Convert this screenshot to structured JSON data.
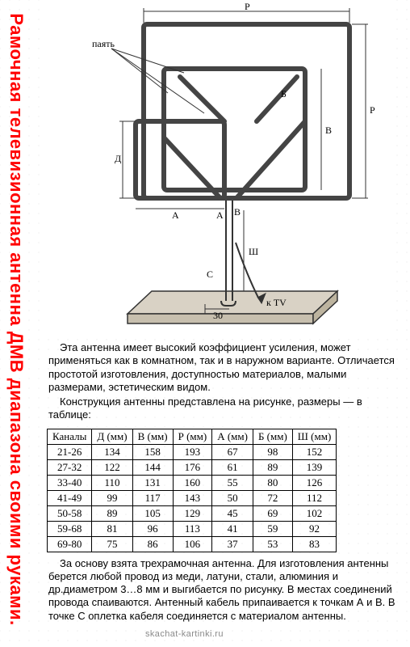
{
  "side_title": "Рамочная телевизионная антенна ДМВ диапазона своими руками.",
  "accent_color": "#ff0000",
  "para1": "Эта антенна имеет высокий коэффициент усиления, может применяться как в комнатном, так и в наружном варианте. Отличается простотой изготовления, доступностью материалов, малыми размерами, эстетическим видом.",
  "para2": "Конструкция антенны представлена на рисунке, размеры — в таблице:",
  "para3": "За основу взята трехрамочная антенна. Для изготовления антенны берется любой провод из меди, латуни, стали, алюминия и др.диаметром 3…8 мм и выгибается по рисунку. В местах соединений провода спаиваются. Антенный кабель припаивается к точкам А и В. В точке С оплетка кабеля соединяется с материалом антенны.",
  "watermark": "skachat-kartinki.ru",
  "diagram": {
    "labels": {
      "payat": "паять",
      "tv": "к TV",
      "dim30": "30"
    },
    "letters": [
      "Р",
      "Д",
      "В",
      "Б",
      "А",
      "А",
      "В",
      "С",
      "Ш"
    ],
    "stroke": "#444444",
    "base_fill": "#d9d2c5"
  },
  "table": {
    "columns": [
      "Каналы",
      "Д (мм)",
      "В (мм)",
      "Р (мм)",
      "А (мм)",
      "Б (мм)",
      "Ш (мм)"
    ],
    "rows": [
      [
        "21-26",
        "134",
        "158",
        "193",
        "67",
        "98",
        "152"
      ],
      [
        "27-32",
        "122",
        "144",
        "176",
        "61",
        "89",
        "139"
      ],
      [
        "33-40",
        "110",
        "131",
        "160",
        "55",
        "80",
        "126"
      ],
      [
        "41-49",
        "99",
        "117",
        "143",
        "50",
        "72",
        "112"
      ],
      [
        "50-58",
        "89",
        "105",
        "129",
        "45",
        "69",
        "102"
      ],
      [
        "59-68",
        "81",
        "96",
        "113",
        "41",
        "59",
        "92"
      ],
      [
        "69-80",
        "75",
        "86",
        "106",
        "37",
        "53",
        "83"
      ]
    ]
  }
}
